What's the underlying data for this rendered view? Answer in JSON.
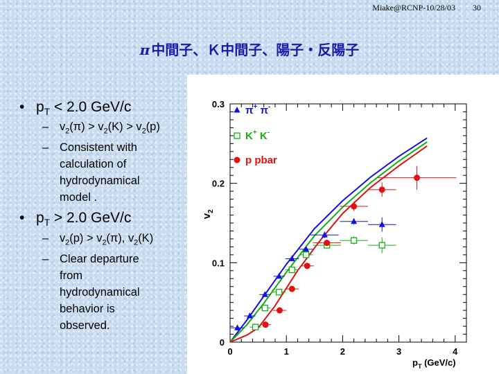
{
  "header": {
    "author": "Miake@RCNP-10/28/03",
    "page": "30"
  },
  "title": {
    "pi": "π",
    "rest": "中間子、Ｋ中間子、陽子・反陽子"
  },
  "bullets": [
    {
      "main": [
        "p",
        "T",
        " < 2.0 GeV/c"
      ],
      "subs": [
        [
          "v",
          "2",
          "(π) > v",
          "2",
          "(K) > v",
          "2",
          "(p)"
        ],
        [
          "Consistent with"
        ],
        [
          "calculation of"
        ],
        [
          "hydrodynamical"
        ],
        [
          "model ."
        ]
      ]
    },
    {
      "main": [
        "p",
        "T",
        " > 2.0 GeV/c"
      ],
      "subs": [
        [
          "v",
          "2",
          "(p) > v",
          "2",
          "(π),  v",
          "2",
          "(K)"
        ],
        [
          "Clear departure"
        ],
        [
          "from"
        ],
        [
          "hydrodynamical"
        ],
        [
          "behavior is"
        ],
        [
          "observed."
        ]
      ]
    }
  ],
  "chart_data": {
    "type": "scatter",
    "xlabel": "pT (GeV/c)",
    "ylabel": "v2",
    "xlim": [
      0,
      4.2
    ],
    "ylim": [
      0,
      0.3
    ],
    "xticks": [
      "0",
      "1",
      "2",
      "3",
      "4"
    ],
    "yticks": [
      "0",
      "0.1",
      "0.2",
      "0.3"
    ],
    "legend_position": "top-left",
    "series": [
      {
        "name": "π+ π-",
        "color": "#1010e0",
        "marker": "triangle",
        "x": [
          0.13,
          0.35,
          0.62,
          0.87,
          1.1,
          1.35,
          1.68,
          2.2,
          2.7
        ],
        "y": [
          0.018,
          0.033,
          0.06,
          0.083,
          0.105,
          0.117,
          0.135,
          0.152,
          0.148
        ],
        "xerr": [
          0.12,
          0.1,
          0.1,
          0.1,
          0.12,
          0.12,
          0.25,
          0.25,
          0.25
        ],
        "yerr": [
          0.002,
          0.002,
          0.002,
          0.002,
          0.002,
          0.003,
          0.004,
          0.004,
          0.009
        ]
      },
      {
        "name": "K+ K-",
        "color": "#10b010",
        "marker": "open-square",
        "x": [
          0.45,
          0.62,
          0.87,
          1.1,
          1.35,
          1.72,
          2.2,
          2.7
        ],
        "y": [
          0.019,
          0.043,
          0.063,
          0.091,
          0.11,
          0.122,
          0.128,
          0.122
        ],
        "xerr": [
          0.1,
          0.1,
          0.12,
          0.12,
          0.12,
          0.25,
          0.25,
          0.25
        ],
        "yerr": [
          0.002,
          0.002,
          0.003,
          0.003,
          0.003,
          0.004,
          0.005,
          0.01
        ]
      },
      {
        "name": "p pbar",
        "color": "#e01010",
        "marker": "filled-circle",
        "x": [
          0.63,
          0.88,
          1.1,
          1.37,
          1.72,
          2.2,
          2.7,
          3.32
        ],
        "y": [
          0.022,
          0.04,
          0.067,
          0.096,
          0.125,
          0.171,
          0.192,
          0.207
        ],
        "xerr": [
          0.1,
          0.12,
          0.12,
          0.12,
          0.25,
          0.25,
          0.25,
          0.7
        ],
        "yerr": [
          0.002,
          0.002,
          0.003,
          0.003,
          0.004,
          0.006,
          0.009,
          0.015
        ]
      }
    ],
    "hydro_curves": [
      {
        "color": "#1010e0",
        "x": [
          0,
          0.3,
          0.6,
          1.0,
          1.5,
          2.0,
          2.5,
          3.0,
          3.5
        ],
        "y": [
          0,
          0.028,
          0.058,
          0.098,
          0.143,
          0.178,
          0.208,
          0.234,
          0.257
        ]
      },
      {
        "color": "#10b010",
        "x": [
          0,
          0.3,
          0.6,
          1.0,
          1.5,
          2.0,
          2.5,
          3.0,
          3.5
        ],
        "y": [
          0,
          0.022,
          0.049,
          0.088,
          0.134,
          0.17,
          0.201,
          0.228,
          0.252
        ]
      },
      {
        "color": "#e01010",
        "x": [
          0,
          0.3,
          0.5,
          0.8,
          1.2,
          1.6,
          2.0,
          2.5,
          3.0,
          3.5
        ],
        "y": [
          0,
          0.009,
          0.018,
          0.046,
          0.09,
          0.128,
          0.162,
          0.195,
          0.222,
          0.247
        ]
      }
    ]
  }
}
